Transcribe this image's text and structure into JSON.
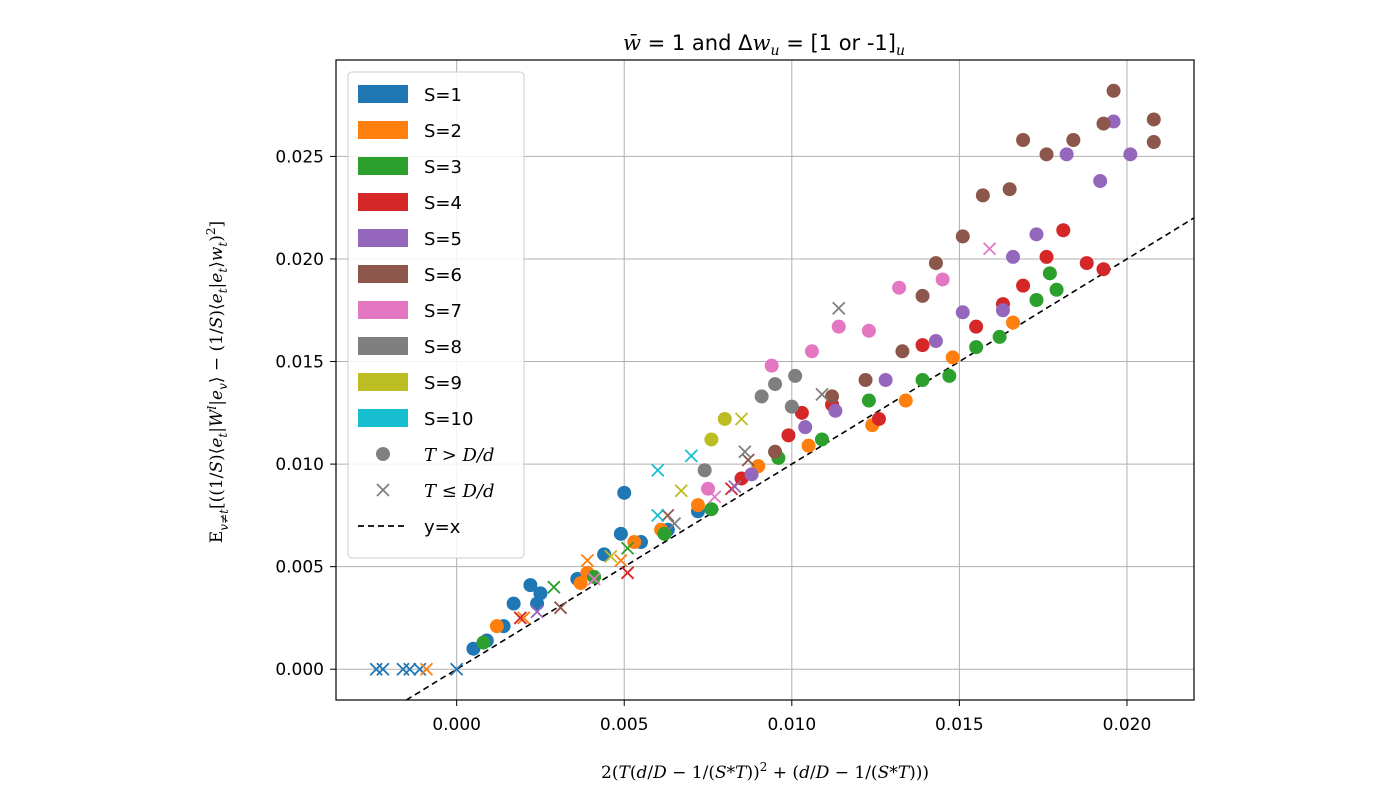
{
  "chart_data": {
    "type": "scatter",
    "title": "w̄ = 1 and Δw_u = [1 or -1]_u",
    "xlabel": "2(T(d/D − 1/(S*T))² + (d/D − 1/(S*T)))",
    "ylabel": "E_{v≠t}[((1/S)⟨e_t^l|W^l|e_v^{l−1}⟩ − (1/S)⟨e_t^{l−1}|e_t^{l−1}⟩w_t)²]",
    "xlim": [
      -0.0036,
      0.022
    ],
    "ylim": [
      -0.0015,
      0.0297
    ],
    "xticks": [
      0.0,
      0.005,
      0.01,
      0.015,
      0.02
    ],
    "xtick_labels": [
      "0.000",
      "0.005",
      "0.010",
      "0.015",
      "0.020"
    ],
    "yticks": [
      0.0,
      0.005,
      0.01,
      0.015,
      0.02,
      0.025
    ],
    "ytick_labels": [
      "0.000",
      "0.005",
      "0.010",
      "0.015",
      "0.020",
      "0.025"
    ],
    "grid": true,
    "legend_position": "top-left",
    "reference_line": {
      "label": "y=x",
      "style": "dashed",
      "color": "#000000"
    },
    "marker_legend": [
      {
        "label": "T > D/d",
        "marker": "circle"
      },
      {
        "label": "T ≤ D/d",
        "marker": "x"
      }
    ],
    "series": [
      {
        "name": "S=1",
        "color": "#1f77b4",
        "circles": [
          [
            0.0005,
            0.001
          ],
          [
            0.0009,
            0.0014
          ],
          [
            0.0014,
            0.0021
          ],
          [
            0.0017,
            0.0032
          ],
          [
            0.0022,
            0.0041
          ],
          [
            0.0025,
            0.0037
          ],
          [
            0.0024,
            0.0032
          ],
          [
            0.0036,
            0.0044
          ],
          [
            0.0044,
            0.0056
          ],
          [
            0.0049,
            0.0066
          ],
          [
            0.005,
            0.0086
          ],
          [
            0.0055,
            0.0062
          ],
          [
            0.0063,
            0.0068
          ],
          [
            0.0072,
            0.0077
          ]
        ],
        "crosses": [
          [
            -0.0024,
            0.0
          ],
          [
            -0.0022,
            0.0
          ],
          [
            -0.0016,
            0.0
          ],
          [
            -0.0014,
            0.0
          ],
          [
            -0.0011,
            0.0
          ],
          [
            0.0,
            0.0
          ]
        ]
      },
      {
        "name": "S=2",
        "color": "#ff7f0e",
        "circles": [
          [
            0.0012,
            0.0021
          ],
          [
            0.0037,
            0.0042
          ],
          [
            0.0039,
            0.0047
          ],
          [
            0.0053,
            0.0062
          ],
          [
            0.0061,
            0.0068
          ],
          [
            0.0072,
            0.008
          ],
          [
            0.009,
            0.0099
          ],
          [
            0.0105,
            0.0109
          ],
          [
            0.0124,
            0.0119
          ],
          [
            0.0134,
            0.0131
          ],
          [
            0.0148,
            0.0152
          ],
          [
            0.0166,
            0.0169
          ]
        ],
        "crosses": [
          [
            -0.0009,
            0.0
          ],
          [
            0.002,
            0.0025
          ],
          [
            0.0039,
            0.0053
          ],
          [
            0.0049,
            0.0053
          ]
        ]
      },
      {
        "name": "S=3",
        "color": "#2ca02c",
        "circles": [
          [
            0.0008,
            0.0013
          ],
          [
            0.0041,
            0.0045
          ],
          [
            0.0062,
            0.0066
          ],
          [
            0.0076,
            0.0078
          ],
          [
            0.0096,
            0.0103
          ],
          [
            0.0109,
            0.0112
          ],
          [
            0.0123,
            0.0131
          ],
          [
            0.0139,
            0.0141
          ],
          [
            0.0147,
            0.0143
          ],
          [
            0.0155,
            0.0157
          ],
          [
            0.0162,
            0.0162
          ],
          [
            0.0173,
            0.018
          ],
          [
            0.0177,
            0.0193
          ],
          [
            0.0179,
            0.0185
          ]
        ],
        "crosses": [
          [
            0.0029,
            0.004
          ],
          [
            0.0051,
            0.0059
          ]
        ]
      },
      {
        "name": "S=4",
        "color": "#d62728",
        "circles": [
          [
            0.0085,
            0.0093
          ],
          [
            0.0099,
            0.0114
          ],
          [
            0.0103,
            0.0125
          ],
          [
            0.0112,
            0.0129
          ],
          [
            0.0126,
            0.0122
          ],
          [
            0.0139,
            0.0158
          ],
          [
            0.0155,
            0.0167
          ],
          [
            0.0163,
            0.0178
          ],
          [
            0.0169,
            0.0187
          ],
          [
            0.0176,
            0.0201
          ],
          [
            0.0181,
            0.0214
          ],
          [
            0.0188,
            0.0198
          ],
          [
            0.0193,
            0.0195
          ]
        ],
        "crosses": [
          [
            0.0019,
            0.0025
          ],
          [
            0.0051,
            0.0047
          ],
          [
            0.0082,
            0.0088
          ]
        ]
      },
      {
        "name": "S=5",
        "color": "#9467bd",
        "circles": [
          [
            0.0088,
            0.0095
          ],
          [
            0.0104,
            0.0118
          ],
          [
            0.0113,
            0.0126
          ],
          [
            0.0128,
            0.0141
          ],
          [
            0.0143,
            0.016
          ],
          [
            0.0151,
            0.0174
          ],
          [
            0.0163,
            0.0175
          ],
          [
            0.0166,
            0.0201
          ],
          [
            0.0173,
            0.0212
          ],
          [
            0.0182,
            0.0251
          ],
          [
            0.0192,
            0.0238
          ],
          [
            0.0196,
            0.0267
          ],
          [
            0.0201,
            0.0251
          ]
        ],
        "crosses": [
          [
            0.0024,
            0.0028
          ],
          [
            0.0083,
            0.0089
          ]
        ]
      },
      {
        "name": "S=6",
        "color": "#8c564b",
        "circles": [
          [
            0.0095,
            0.0106
          ],
          [
            0.0112,
            0.0133
          ],
          [
            0.0122,
            0.0141
          ],
          [
            0.0133,
            0.0155
          ],
          [
            0.0139,
            0.0182
          ],
          [
            0.0143,
            0.0198
          ],
          [
            0.0151,
            0.0211
          ],
          [
            0.0157,
            0.0231
          ],
          [
            0.0165,
            0.0234
          ],
          [
            0.0169,
            0.0258
          ],
          [
            0.0176,
            0.0251
          ],
          [
            0.0184,
            0.0258
          ],
          [
            0.0193,
            0.0266
          ],
          [
            0.0196,
            0.0282
          ],
          [
            0.0208,
            0.0268
          ],
          [
            0.0208,
            0.0257
          ]
        ],
        "crosses": [
          [
            0.0031,
            0.003
          ],
          [
            0.0063,
            0.0075
          ],
          [
            0.0087,
            0.0102
          ]
        ]
      },
      {
        "name": "S=7",
        "color": "#e377c2",
        "circles": [
          [
            0.0075,
            0.0088
          ],
          [
            0.0094,
            0.0148
          ],
          [
            0.0106,
            0.0155
          ],
          [
            0.0114,
            0.0167
          ],
          [
            0.0123,
            0.0165
          ],
          [
            0.0132,
            0.0186
          ],
          [
            0.0145,
            0.019
          ]
        ],
        "crosses": [
          [
            0.0041,
            0.0044
          ],
          [
            0.0077,
            0.0084
          ],
          [
            0.0159,
            0.0205
          ]
        ]
      },
      {
        "name": "S=8",
        "color": "#7f7f7f",
        "circles": [
          [
            0.0074,
            0.0097
          ],
          [
            0.0091,
            0.0133
          ],
          [
            0.0095,
            0.0139
          ],
          [
            0.01,
            0.0128
          ],
          [
            0.0101,
            0.0143
          ]
        ],
        "crosses": [
          [
            0.0065,
            0.0071
          ],
          [
            0.0086,
            0.0106
          ],
          [
            0.0109,
            0.0134
          ],
          [
            0.0114,
            0.0176
          ]
        ]
      },
      {
        "name": "S=9",
        "color": "#bcbd22",
        "circles": [
          [
            0.0076,
            0.0112
          ],
          [
            0.008,
            0.0122
          ]
        ],
        "crosses": [
          [
            0.0046,
            0.0055
          ],
          [
            0.0067,
            0.0087
          ],
          [
            0.0085,
            0.0122
          ]
        ]
      },
      {
        "name": "S=10",
        "color": "#17becf",
        "circles": [],
        "crosses": [
          [
            0.006,
            0.0075
          ],
          [
            0.006,
            0.0097
          ],
          [
            0.007,
            0.0104
          ]
        ]
      }
    ]
  }
}
